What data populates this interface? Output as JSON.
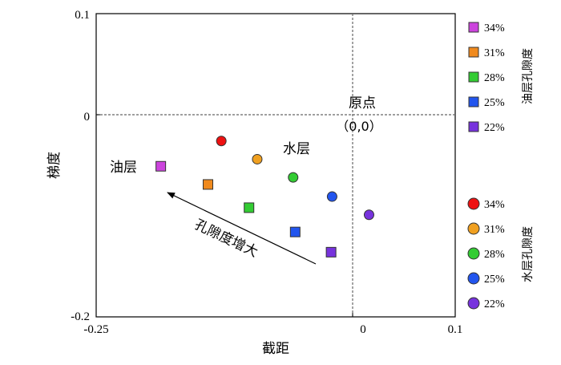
{
  "chart_data": {
    "type": "scatter",
    "xlabel": "截距",
    "ylabel": "梯度",
    "xlim": [
      -0.25,
      0.1
    ],
    "ylim": [
      -0.2,
      0.1
    ],
    "xticks": [
      "-0.25",
      "0",
      "0.1"
    ],
    "yticks": [
      "0.1",
      "0",
      "-0.2"
    ],
    "reference_lines": {
      "x": 0,
      "y": 0,
      "style": "dashed"
    },
    "series": [
      {
        "name": "油层孔隙度",
        "marker": "square",
        "points": [
          {
            "label": "34%",
            "x": -0.187,
            "y": -0.051,
            "color": "#cc44dd"
          },
          {
            "label": "31%",
            "x": -0.141,
            "y": -0.069,
            "color": "#f08a1e"
          },
          {
            "label": "28%",
            "x": -0.101,
            "y": -0.092,
            "color": "#33cc33"
          },
          {
            "label": "25%",
            "x": -0.056,
            "y": -0.116,
            "color": "#2255ee"
          },
          {
            "label": "22%",
            "x": -0.021,
            "y": -0.136,
            "color": "#7733dd"
          }
        ]
      },
      {
        "name": "水层孔隙度",
        "marker": "circle",
        "points": [
          {
            "label": "34%",
            "x": -0.128,
            "y": -0.026,
            "color": "#ee1111"
          },
          {
            "label": "31%",
            "x": -0.093,
            "y": -0.044,
            "color": "#f0a020"
          },
          {
            "label": "28%",
            "x": -0.058,
            "y": -0.062,
            "color": "#33cc33"
          },
          {
            "label": "25%",
            "x": -0.02,
            "y": -0.081,
            "color": "#2255ee"
          },
          {
            "label": "22%",
            "x": 0.016,
            "y": -0.099,
            "color": "#7733dd"
          }
        ]
      }
    ],
    "annotations": {
      "origin_title": "原点",
      "origin_coords": "（0,0）",
      "oil_layer": "油层",
      "water_layer": "水层",
      "arrow_text": "孔隙度增大"
    },
    "legend_placement": "right"
  }
}
